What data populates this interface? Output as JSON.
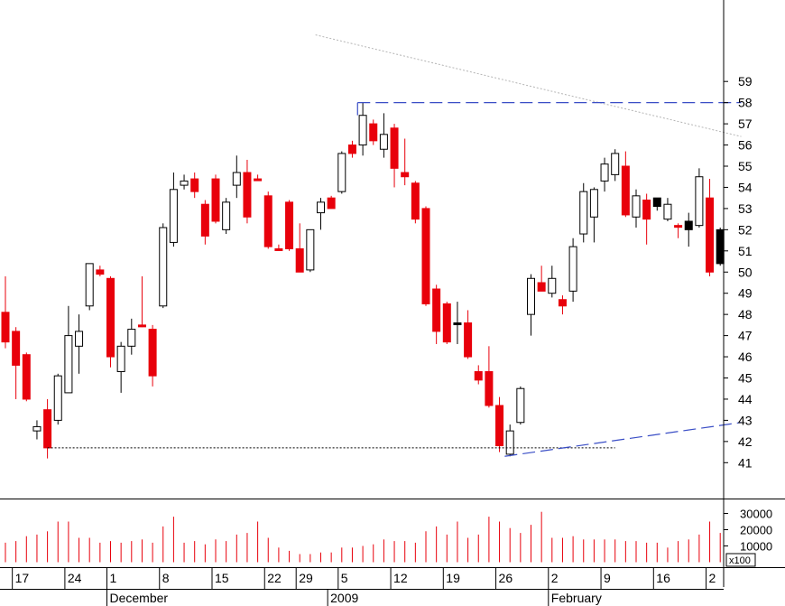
{
  "chart_data": {
    "type": "candlestick",
    "title": "",
    "price_axis": {
      "min": 40,
      "max": 60,
      "ticks": [
        41,
        42,
        43,
        44,
        45,
        46,
        47,
        48,
        49,
        50,
        51,
        52,
        53,
        54,
        55,
        56,
        57,
        58,
        59
      ]
    },
    "volume_axis": {
      "max": 40000,
      "ticks": [
        10000,
        20000,
        30000
      ],
      "tick_labels": [
        "10000",
        "20000",
        "30000"
      ],
      "unit_label": "x100"
    },
    "x_day_labels": [
      {
        "i": 1,
        "label": "17"
      },
      {
        "i": 6,
        "label": "24"
      },
      {
        "i": 10,
        "label": "1"
      },
      {
        "i": 15,
        "label": "8"
      },
      {
        "i": 20,
        "label": "15"
      },
      {
        "i": 25,
        "label": "22"
      },
      {
        "i": 28,
        "label": "29"
      },
      {
        "i": 32,
        "label": "5"
      },
      {
        "i": 37,
        "label": "12"
      },
      {
        "i": 42,
        "label": "19"
      },
      {
        "i": 47,
        "label": "26"
      },
      {
        "i": 52,
        "label": "2"
      },
      {
        "i": 57,
        "label": "9"
      },
      {
        "i": 62,
        "label": "16"
      },
      {
        "i": 67,
        "label": "2"
      }
    ],
    "x_month_labels": [
      {
        "i": 10,
        "label": "December"
      },
      {
        "i": 31,
        "label": "2009"
      },
      {
        "i": 52,
        "label": "February"
      }
    ],
    "candles": [
      {
        "o": 48.1,
        "h": 49.8,
        "l": 46.4,
        "c": 46.7,
        "v": 12000,
        "col": "red"
      },
      {
        "o": 47.2,
        "h": 47.4,
        "l": 44.0,
        "c": 45.6,
        "v": 13000,
        "col": "red"
      },
      {
        "o": 46.1,
        "h": 46.2,
        "l": 43.9,
        "c": 44.0,
        "v": 16000,
        "col": "red"
      },
      {
        "o": 42.5,
        "h": 43.0,
        "l": 42.1,
        "c": 42.7,
        "v": 17000,
        "col": "white"
      },
      {
        "o": 43.5,
        "h": 44.0,
        "l": 41.2,
        "c": 41.7,
        "v": 19000,
        "col": "red"
      },
      {
        "o": 43.0,
        "h": 45.2,
        "l": 42.8,
        "c": 45.1,
        "v": 25000,
        "col": "white"
      },
      {
        "o": 44.3,
        "h": 48.4,
        "l": 44.3,
        "c": 47.0,
        "v": 25000,
        "col": "white"
      },
      {
        "o": 46.5,
        "h": 48.0,
        "l": 45.2,
        "c": 47.2,
        "v": 15000,
        "col": "white"
      },
      {
        "o": 48.4,
        "h": 50.4,
        "l": 48.2,
        "c": 50.4,
        "v": 15000,
        "col": "white"
      },
      {
        "o": 50.1,
        "h": 50.3,
        "l": 49.8,
        "c": 49.9,
        "v": 12000,
        "col": "red"
      },
      {
        "o": 49.7,
        "h": 49.8,
        "l": 45.5,
        "c": 46.0,
        "v": 13000,
        "col": "red"
      },
      {
        "o": 45.3,
        "h": 46.7,
        "l": 44.3,
        "c": 46.5,
        "v": 12000,
        "col": "white"
      },
      {
        "o": 46.5,
        "h": 47.8,
        "l": 46.1,
        "c": 47.3,
        "v": 13000,
        "col": "white"
      },
      {
        "o": 47.5,
        "h": 49.8,
        "l": 47.4,
        "c": 47.5,
        "v": 14000,
        "col": "red"
      },
      {
        "o": 47.3,
        "h": 47.5,
        "l": 44.6,
        "c": 45.1,
        "v": 12000,
        "col": "red"
      },
      {
        "o": 48.4,
        "h": 52.3,
        "l": 48.3,
        "c": 52.1,
        "v": 22000,
        "col": "white"
      },
      {
        "o": 51.4,
        "h": 54.7,
        "l": 51.2,
        "c": 53.9,
        "v": 28000,
        "col": "white"
      },
      {
        "o": 54.1,
        "h": 54.6,
        "l": 53.9,
        "c": 54.3,
        "v": 12000,
        "col": "white"
      },
      {
        "o": 54.4,
        "h": 54.7,
        "l": 53.5,
        "c": 53.8,
        "v": 13000,
        "col": "red"
      },
      {
        "o": 53.2,
        "h": 53.4,
        "l": 51.3,
        "c": 51.7,
        "v": 11000,
        "col": "red"
      },
      {
        "o": 54.4,
        "h": 54.6,
        "l": 52.3,
        "c": 52.4,
        "v": 14000,
        "col": "red"
      },
      {
        "o": 52.0,
        "h": 53.5,
        "l": 51.8,
        "c": 53.3,
        "v": 13000,
        "col": "white"
      },
      {
        "o": 54.1,
        "h": 55.5,
        "l": 53.5,
        "c": 54.7,
        "v": 17000,
        "col": "white"
      },
      {
        "o": 54.7,
        "h": 55.3,
        "l": 52.3,
        "c": 52.6,
        "v": 18000,
        "col": "red"
      },
      {
        "o": 54.4,
        "h": 54.6,
        "l": 54.3,
        "c": 54.4,
        "v": 25000,
        "col": "red"
      },
      {
        "o": 53.6,
        "h": 53.8,
        "l": 51.1,
        "c": 51.2,
        "v": 15000,
        "col": "red"
      },
      {
        "o": 51.1,
        "h": 51.3,
        "l": 51.0,
        "c": 51.1,
        "v": 9000,
        "col": "red"
      },
      {
        "o": 53.3,
        "h": 53.4,
        "l": 51.0,
        "c": 51.1,
        "v": 7000,
        "col": "red"
      },
      {
        "o": 51.1,
        "h": 52.3,
        "l": 50.0,
        "c": 50.0,
        "v": 5000,
        "col": "red"
      },
      {
        "o": 50.1,
        "h": 52.0,
        "l": 50.0,
        "c": 52.0,
        "v": 5000,
        "col": "white"
      },
      {
        "o": 52.8,
        "h": 53.5,
        "l": 52.0,
        "c": 53.3,
        "v": 6000,
        "col": "white"
      },
      {
        "o": 53.5,
        "h": 53.6,
        "l": 53.0,
        "c": 53.0,
        "v": 6000,
        "col": "red"
      },
      {
        "o": 53.8,
        "h": 55.7,
        "l": 53.7,
        "c": 55.6,
        "v": 9000,
        "col": "white"
      },
      {
        "o": 56.0,
        "h": 56.2,
        "l": 55.4,
        "c": 55.6,
        "v": 9000,
        "col": "red"
      },
      {
        "o": 56.0,
        "h": 58.0,
        "l": 55.5,
        "c": 57.4,
        "v": 10000,
        "col": "white"
      },
      {
        "o": 57.0,
        "h": 57.2,
        "l": 56.0,
        "c": 56.2,
        "v": 11000,
        "col": "red"
      },
      {
        "o": 55.8,
        "h": 57.5,
        "l": 55.4,
        "c": 56.5,
        "v": 14000,
        "col": "white"
      },
      {
        "o": 56.8,
        "h": 57.0,
        "l": 54.0,
        "c": 54.9,
        "v": 13000,
        "col": "red"
      },
      {
        "o": 54.7,
        "h": 56.3,
        "l": 54.1,
        "c": 54.5,
        "v": 13000,
        "col": "red"
      },
      {
        "o": 54.2,
        "h": 54.3,
        "l": 52.3,
        "c": 52.5,
        "v": 12000,
        "col": "red"
      },
      {
        "o": 53.0,
        "h": 53.1,
        "l": 48.4,
        "c": 48.5,
        "v": 19000,
        "col": "red"
      },
      {
        "o": 49.2,
        "h": 49.4,
        "l": 46.6,
        "c": 47.2,
        "v": 22000,
        "col": "red"
      },
      {
        "o": 48.5,
        "h": 48.6,
        "l": 46.6,
        "c": 46.7,
        "v": 17000,
        "col": "red"
      },
      {
        "o": 47.6,
        "h": 48.6,
        "l": 46.6,
        "c": 47.6,
        "v": 25000,
        "col": "black"
      },
      {
        "o": 47.6,
        "h": 48.2,
        "l": 45.9,
        "c": 46.0,
        "v": 15000,
        "col": "red"
      },
      {
        "o": 45.3,
        "h": 45.6,
        "l": 44.7,
        "c": 44.9,
        "v": 17000,
        "col": "red"
      },
      {
        "o": 45.3,
        "h": 46.5,
        "l": 43.6,
        "c": 43.7,
        "v": 28000,
        "col": "red"
      },
      {
        "o": 43.7,
        "h": 44.1,
        "l": 41.5,
        "c": 41.8,
        "v": 25000,
        "col": "red"
      },
      {
        "o": 41.4,
        "h": 42.8,
        "l": 41.3,
        "c": 42.5,
        "v": 21000,
        "col": "white"
      },
      {
        "o": 42.9,
        "h": 44.6,
        "l": 42.8,
        "c": 44.5,
        "v": 18000,
        "col": "white"
      },
      {
        "o": 48.0,
        "h": 49.9,
        "l": 47.0,
        "c": 49.7,
        "v": 23000,
        "col": "white"
      },
      {
        "o": 49.5,
        "h": 50.3,
        "l": 49.1,
        "c": 49.1,
        "v": 31000,
        "col": "red"
      },
      {
        "o": 49.0,
        "h": 50.3,
        "l": 48.8,
        "c": 49.7,
        "v": 15000,
        "col": "white"
      },
      {
        "o": 48.7,
        "h": 48.9,
        "l": 48.0,
        "c": 48.4,
        "v": 15000,
        "col": "red"
      },
      {
        "o": 49.1,
        "h": 51.6,
        "l": 48.6,
        "c": 51.2,
        "v": 16000,
        "col": "white"
      },
      {
        "o": 51.8,
        "h": 54.2,
        "l": 51.4,
        "c": 53.8,
        "v": 14000,
        "col": "white"
      },
      {
        "o": 52.6,
        "h": 54.0,
        "l": 51.4,
        "c": 53.9,
        "v": 14000,
        "col": "white"
      },
      {
        "o": 54.3,
        "h": 55.4,
        "l": 53.8,
        "c": 55.1,
        "v": 14000,
        "col": "white"
      },
      {
        "o": 54.6,
        "h": 55.8,
        "l": 54.3,
        "c": 55.6,
        "v": 14000,
        "col": "white"
      },
      {
        "o": 55.0,
        "h": 55.7,
        "l": 52.6,
        "c": 52.7,
        "v": 13000,
        "col": "red"
      },
      {
        "o": 52.6,
        "h": 53.9,
        "l": 52.1,
        "c": 53.6,
        "v": 13000,
        "col": "white"
      },
      {
        "o": 53.4,
        "h": 53.7,
        "l": 51.3,
        "c": 52.5,
        "v": 12000,
        "col": "red"
      },
      {
        "o": 53.1,
        "h": 53.5,
        "l": 52.9,
        "c": 53.5,
        "v": 12000,
        "col": "black"
      },
      {
        "o": 52.5,
        "h": 53.5,
        "l": 52.4,
        "c": 53.2,
        "v": 9000,
        "col": "white"
      },
      {
        "o": 52.2,
        "h": 52.3,
        "l": 51.6,
        "c": 52.2,
        "v": 13000,
        "col": "red"
      },
      {
        "o": 52.0,
        "h": 52.8,
        "l": 51.2,
        "c": 52.4,
        "v": 14000,
        "col": "black"
      },
      {
        "o": 52.2,
        "h": 54.9,
        "l": 52.1,
        "c": 54.5,
        "v": 17000,
        "col": "white"
      },
      {
        "o": 53.5,
        "h": 54.4,
        "l": 49.8,
        "c": 50.0,
        "v": 25000,
        "col": "red"
      },
      {
        "o": 52.0,
        "h": 52.1,
        "l": 50.3,
        "c": 50.4,
        "v": 18000,
        "col": "black"
      }
    ],
    "annotations": [
      {
        "type": "resistance-dashed",
        "from": {
          "i": 33.5,
          "v": 58.0
        },
        "to": {
          "i": 70,
          "v": 58.0
        },
        "color": "#3a4ec6"
      },
      {
        "type": "trend-dotted-gray",
        "from": {
          "i": 29.5,
          "v": 61.2
        },
        "to": {
          "i": 70,
          "v": 56.4
        },
        "color": "#b4b4b4"
      },
      {
        "type": "support-dotted",
        "from": {
          "i": 4,
          "v": 41.7
        },
        "to": {
          "i": 58,
          "v": 41.7
        },
        "color": "#000000"
      },
      {
        "type": "trend-dashed",
        "from": {
          "i": 47.5,
          "v": 41.3
        },
        "to": {
          "i": 70,
          "v": 42.9
        },
        "color": "#3a4ec6"
      }
    ]
  }
}
